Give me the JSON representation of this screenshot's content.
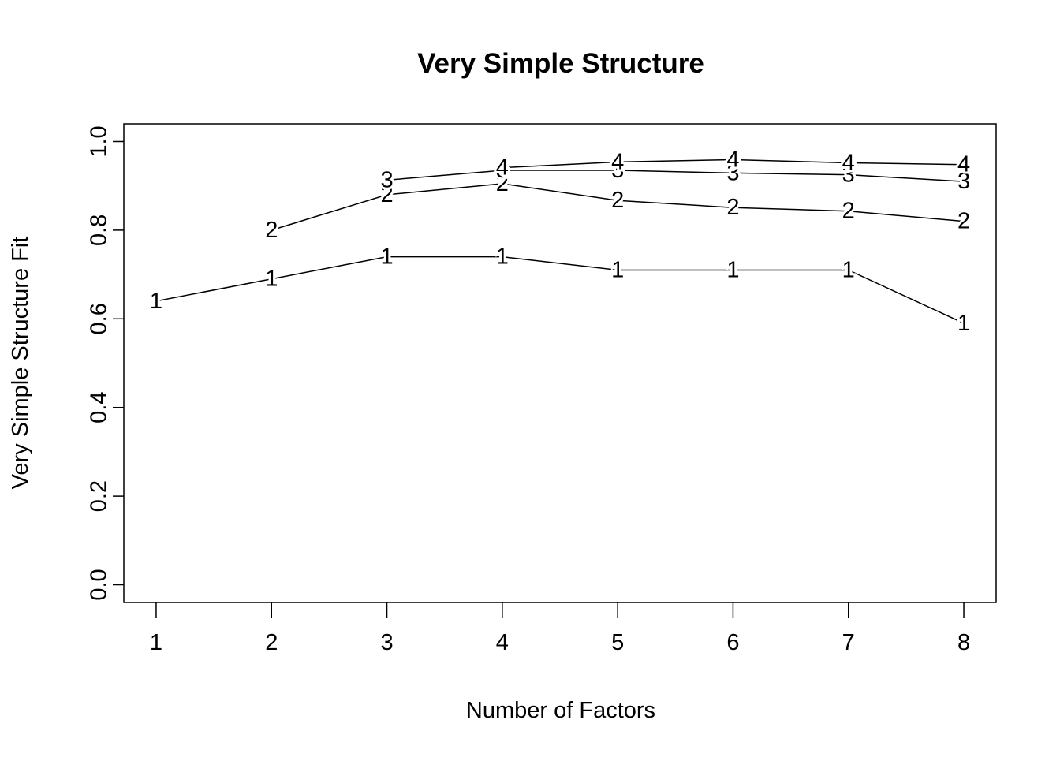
{
  "chart_data": {
    "type": "line",
    "title": "Very Simple Structure",
    "x_label": "Number of Factors",
    "y_label": "Very Simple Structure Fit",
    "x": [
      1,
      2,
      3,
      4,
      5,
      6,
      7,
      8
    ],
    "series": [
      {
        "name": "1",
        "color": "#000000",
        "values": [
          0.64,
          0.69,
          0.74,
          0.74,
          0.71,
          0.71,
          0.71,
          0.59
        ]
      },
      {
        "name": "2",
        "color": "#000000",
        "values": [
          null,
          0.8,
          0.88,
          0.905,
          0.867,
          0.851,
          0.843,
          0.82
        ]
      },
      {
        "name": "3",
        "color": "#000000",
        "values": [
          null,
          null,
          0.913,
          0.935,
          0.935,
          0.929,
          0.925,
          0.91
        ]
      },
      {
        "name": "4",
        "color": "#000000",
        "values": [
          null,
          null,
          null,
          0.941,
          0.954,
          0.959,
          0.952,
          0.948
        ]
      }
    ],
    "xlim": [
      0.72,
      8.28
    ],
    "ylim": [
      -0.04,
      1.04
    ],
    "xticks": [
      1,
      2,
      3,
      4,
      5,
      6,
      7,
      8
    ],
    "yticks": [
      {
        "value": 0,
        "label": "0.0"
      },
      0.2,
      0.4,
      0.6,
      0.8,
      {
        "value": 1,
        "label": "1.0"
      }
    ]
  }
}
